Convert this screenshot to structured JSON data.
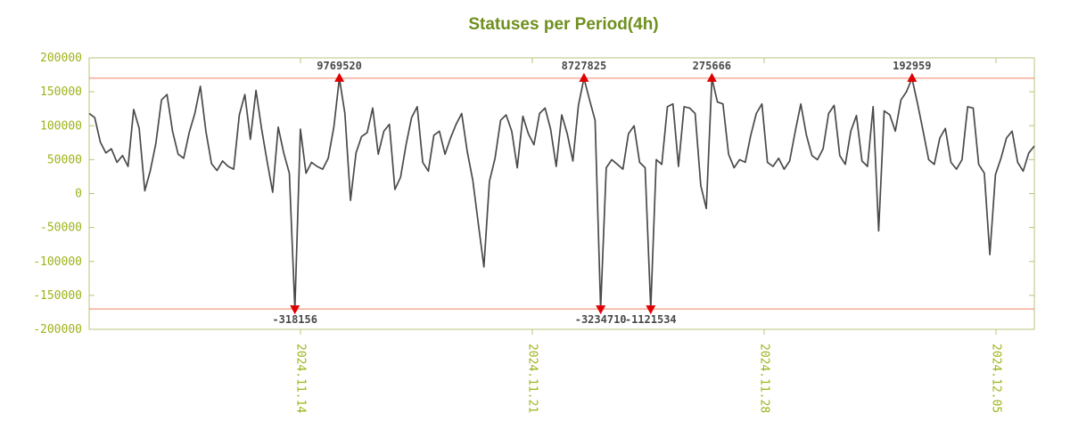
{
  "chart_data": {
    "type": "line",
    "title": "Statuses per Period(4h)",
    "period_hours": 4,
    "ylim": [
      -200000,
      200000
    ],
    "ytick_step": 50000,
    "y_tick_labels": [
      "200000",
      "150000",
      "100000",
      "50000",
      "0",
      "-50000",
      "-100000",
      "-150000",
      "-200000"
    ],
    "clip_value": 170000,
    "grid": false,
    "legend": "none",
    "x_ticks": [
      {
        "label": "2024.11.14",
        "index": 38.0
      },
      {
        "label": "2024.11.21",
        "index": 79.7
      },
      {
        "label": "2024.11.28",
        "index": 121.4
      },
      {
        "label": "2024.12.05",
        "index": 163.1
      }
    ],
    "markers": [
      {
        "index": 37,
        "label": "-318156",
        "value": -318156,
        "side": "bottom"
      },
      {
        "index": 45,
        "label": "9769520",
        "value": 9769520,
        "side": "top"
      },
      {
        "index": 89,
        "label": "8727825",
        "value": 8727825,
        "side": "top"
      },
      {
        "index": 92,
        "label": "-3234710",
        "value": -3234710,
        "side": "bottom"
      },
      {
        "index": 101,
        "label": "-1121534",
        "value": -1121534,
        "side": "bottom"
      },
      {
        "index": 112,
        "label": "275666",
        "value": 275666,
        "side": "top"
      },
      {
        "index": 148,
        "label": "192959",
        "value": 192959,
        "side": "top"
      }
    ],
    "values": [
      118000,
      112000,
      76000,
      60000,
      66000,
      46000,
      56000,
      40000,
      124000,
      96000,
      4000,
      34000,
      74000,
      138000,
      146000,
      92000,
      58000,
      52000,
      90000,
      118000,
      158000,
      92000,
      44000,
      34000,
      48000,
      40000,
      36000,
      116000,
      146000,
      80000,
      152000,
      96000,
      48000,
      2000,
      98000,
      60000,
      30000,
      -318156,
      95000,
      30000,
      46000,
      40000,
      36000,
      52000,
      98000,
      9769520,
      118000,
      -10000,
      60000,
      84000,
      90000,
      126000,
      58000,
      92000,
      102000,
      6000,
      24000,
      72000,
      112000,
      128000,
      46000,
      33000,
      86000,
      92000,
      58000,
      82000,
      102000,
      118000,
      62000,
      20000,
      -45000,
      -108000,
      18000,
      52000,
      108000,
      116000,
      92000,
      38000,
      114000,
      88000,
      72000,
      118000,
      126000,
      95000,
      40000,
      116000,
      88000,
      48000,
      130000,
      8727825,
      138000,
      108000,
      -3234710,
      38000,
      50000,
      43000,
      36000,
      88000,
      100000,
      46000,
      38000,
      -1121534,
      50000,
      43000,
      128000,
      132000,
      40000,
      128000,
      126000,
      118000,
      12000,
      -22000,
      275666,
      135000,
      132000,
      58000,
      38000,
      50000,
      46000,
      86000,
      118000,
      132000,
      46000,
      40000,
      52000,
      36000,
      48000,
      92000,
      132000,
      86000,
      56000,
      50000,
      66000,
      118000,
      130000,
      56000,
      43000,
      92000,
      115000,
      48000,
      40000,
      128000,
      -55000,
      122000,
      116000,
      92000,
      138000,
      150000,
      192959,
      132000,
      92000,
      50000,
      43000,
      82000,
      96000,
      46000,
      36000,
      50000,
      128000,
      126000,
      43000,
      30000,
      -90000,
      28000,
      52000,
      82000,
      92000,
      46000,
      33000,
      60000,
      70000
    ],
    "colors": {
      "line": "#4a4a4a",
      "threshold": "#ef8062",
      "marker": "#e10000",
      "marker_label": "#494949",
      "axis": "#b9c47c",
      "tick_label": "#a0b21a",
      "title": "#6f8f1f",
      "background": "#ffffff"
    }
  }
}
